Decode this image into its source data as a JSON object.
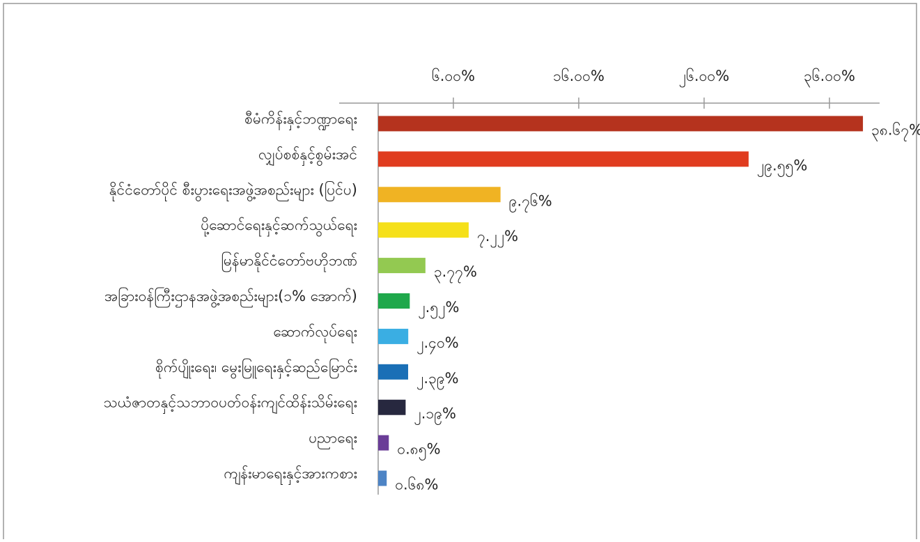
{
  "chart_data": {
    "type": "hbar",
    "categories": [
      "စီမံကိန်းနှင့်ဘဏ္ဍာရေး",
      "လျှပ်စစ်နှင့်စွမ်းအင်",
      "နိုင်ငံတော်ပိုင် စီးပွားရေးအဖွဲ့အစည်းများ (ပြင်ပ)",
      "ပို့ဆောင်ရေးနှင့်ဆက်သွယ်ရေး",
      "မြန်မာနိုင်ငံတော်ဗဟိုဘဏ်",
      "အခြားဝန်ကြီးဌာနအဖွဲ့အစည်းများ(၁% အောက်)",
      "ဆောက်လုပ်ရေး",
      "စိုက်ပျိုးရေး၊ မွေးမြူရေးနှင့်ဆည်မြောင်း",
      "သယံဇာတနှင့်သဘာဝပတ်ဝန်းကျင်ထိန်းသိမ်းရေး",
      "ပညာရေး",
      "ကျန်းမာရေးနှင့်အားကစား"
    ],
    "values": [
      38.67,
      29.55,
      9.76,
      7.22,
      3.77,
      2.52,
      2.4,
      2.39,
      2.19,
      0.85,
      0.68
    ],
    "value_labels": [
      "၃၈.၆၇%",
      "၂၉.၅၅%",
      "၉.၇၆%",
      "၇.၂၂%",
      "၃.၇၇%",
      "၂.၅၂%",
      "၂.၄၀%",
      "၂.၃၉%",
      "၂.၁၉%",
      "၀.၈၅%",
      "၀.၆၈%"
    ],
    "colors": [
      "#b5331e",
      "#e03c1f",
      "#f0b323",
      "#f5e01a",
      "#93c951",
      "#1fa84b",
      "#3aaee3",
      "#1a6fb6",
      "#27283f",
      "#6a3d97",
      "#4d84c5"
    ],
    "xlim": [
      0,
      40
    ],
    "xticks": [
      {
        "value": 6,
        "label": "၆.၀၀%"
      },
      {
        "value": 16,
        "label": "၁၆.၀၀%"
      },
      {
        "value": 26,
        "label": "၂၆.၀၀%"
      },
      {
        "value": 36,
        "label": "၃၆.၀၀%"
      }
    ]
  }
}
